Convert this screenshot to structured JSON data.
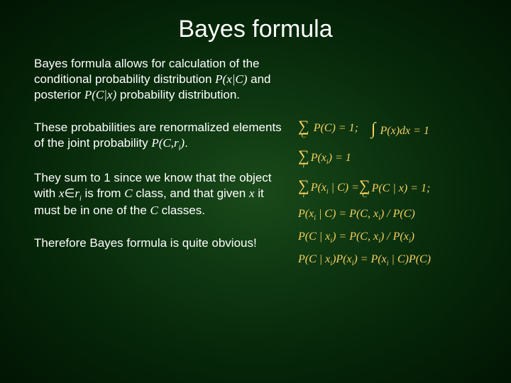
{
  "title": "Bayes formula",
  "paragraphs": {
    "p1_a": "Bayes formula allows for calculation of the conditional probability distribution ",
    "p1_m1": "P(x|C)",
    "p1_b": " and posterior ",
    "p1_m2": "P(C|x)",
    "p1_c": " probability distribution.",
    "p2_a": "These probabilities are renormalized elements of the joint probability ",
    "p2_m1": "P(C,r",
    "p2_sub": "i",
    "p2_m2": ")",
    "p2_b": ".",
    "p3_a": "They sum to 1 since we know that the object with ",
    "p3_m1": "x",
    "p3_in": "∈",
    "p3_m2": "r",
    "p3_sub": "i",
    "p3_b": " is from ",
    "p3_m3": "C",
    "p3_c": " class, and that given ",
    "p3_m4": "x",
    "p3_d": " it must be in one of the ",
    "p3_m5": "C",
    "p3_e": " classes.",
    "p4": "Therefore Bayes formula is quite obvious!"
  },
  "equations": {
    "e1a_sub": "C",
    "e1a": "P(C) = 1;",
    "e1b": "P(x)dx = 1",
    "e2_sub": "i",
    "e2": "P(x",
    "e2_i": "i",
    "e2_tail": ") = 1",
    "e3_sub": "i",
    "e3a": "P(x",
    "e3a_i": "i",
    "e3a_tail": " | C) = ",
    "e3b_sub": "C",
    "e3b": "P(C | x) = 1;",
    "e4": "P(x",
    "e4_i": "i",
    "e4_a": " | C) = P(C, x",
    "e4_i2": "i",
    "e4_b": ") / P(C)",
    "e5": "P(C | x",
    "e5_i": "i",
    "e5_a": ") = P(C, x",
    "e5_i2": "i",
    "e5_b": ") / P(x",
    "e5_i3": "i",
    "e5_c": ")",
    "e6": "P(C | x",
    "e6_i": "i",
    "e6_a": ")P(x",
    "e6_i2": "i",
    "e6_b": ") = P(x",
    "e6_i3": "i",
    "e6_c": " | C)P(C)"
  },
  "colors": {
    "text": "#ffffff",
    "equations": "#f5d060",
    "bg_center": "#1a4a1a",
    "bg_edge": "#021504"
  }
}
